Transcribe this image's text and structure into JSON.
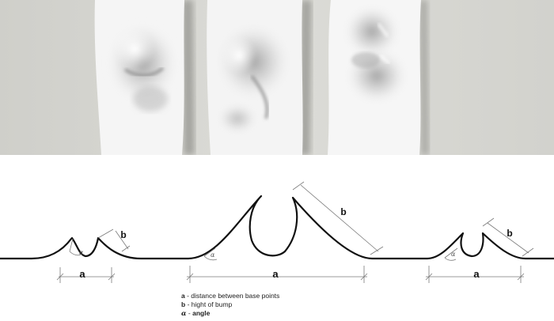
{
  "diagram": {
    "dimension_labels": {
      "small_bump_base": "a",
      "small_bump_height": "b",
      "small_bump_angle": "α",
      "large_bump_base": "a",
      "large_bump_height": "b",
      "large_bump_angle": "α",
      "right_bump_base": "a",
      "right_bump_height": "b",
      "right_bump_angle": "α"
    },
    "legend": [
      {
        "key": "a",
        "separator": " - ",
        "text": "distance between base points"
      },
      {
        "key": "b",
        "separator": " - ",
        "text": "hight of bump"
      },
      {
        "key": "α",
        "separator": " - ",
        "text": "angle"
      }
    ]
  },
  "colors": {
    "photo_background": "#d6d6d1",
    "paper": "#f6f6f6",
    "curve": "#111111",
    "dimension_line": "#777777"
  }
}
